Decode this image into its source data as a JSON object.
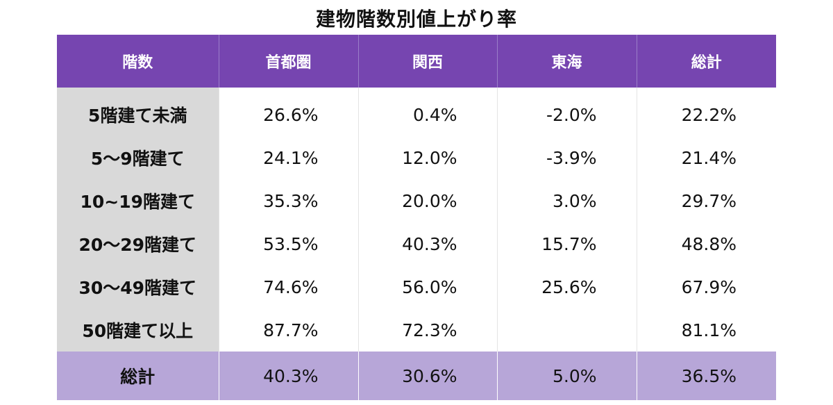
{
  "chart_data": {
    "type": "table",
    "title": "建物階数別値上がり率",
    "columns": [
      "階数",
      "首都圏",
      "関西",
      "東海",
      "総計"
    ],
    "rows": [
      {
        "label": "5階建て未満",
        "values": [
          "26.6%",
          "0.4%",
          "-2.0%",
          "22.2%"
        ]
      },
      {
        "label": "5～9階建て",
        "values": [
          "24.1%",
          "12.0%",
          "-3.9%",
          "21.4%"
        ]
      },
      {
        "label": "10~19階建て",
        "values": [
          "35.3%",
          "20.0%",
          "3.0%",
          "29.7%"
        ]
      },
      {
        "label": "20～29階建て",
        "values": [
          "53.5%",
          "40.3%",
          "15.7%",
          "48.8%"
        ]
      },
      {
        "label": "30～49階建て",
        "values": [
          "74.6%",
          "56.0%",
          "25.6%",
          "67.9%"
        ]
      },
      {
        "label": "50階建て以上",
        "values": [
          "87.7%",
          "72.3%",
          "",
          "81.1%"
        ]
      }
    ],
    "total": {
      "label": "総計",
      "values": [
        "40.3%",
        "30.6%",
        "5.0%",
        "36.5%"
      ]
    }
  },
  "colors": {
    "header_bg": "#7645b0",
    "header_text": "#ffffff",
    "row_label_bg": "#d9d9d9",
    "total_bg": "#b7a6d8"
  }
}
